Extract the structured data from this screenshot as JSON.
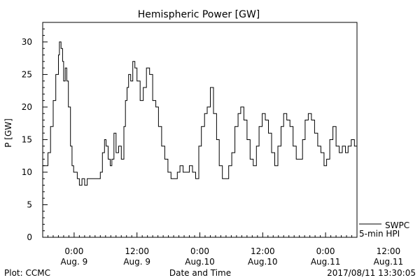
{
  "chart_data": {
    "type": "line",
    "title": "Hemispheric Power [GW]",
    "ylabel": "P [GW]",
    "xlabel": "Date and Time",
    "ylim": [
      0,
      33
    ],
    "xlim_hours": [
      0,
      60
    ],
    "y_ticks": [
      0,
      5,
      10,
      15,
      20,
      25,
      30
    ],
    "x_tick_labels": [
      {
        "time": "0:00",
        "date": "Aug. 9",
        "hour": 6
      },
      {
        "time": "12:00",
        "date": "Aug. 9",
        "hour": 18
      },
      {
        "time": "0:00",
        "date": "Aug.10",
        "hour": 30
      },
      {
        "time": "12:00",
        "date": "Aug.10",
        "hour": 42
      },
      {
        "time": "0:00",
        "date": "Aug.11",
        "hour": 54
      },
      {
        "time": "12:00",
        "date": "Aug.11",
        "hour": 66
      }
    ],
    "series": [
      {
        "name": "",
        "color": "#000000",
        "x_hours": [
          0,
          0.5,
          1,
          1.5,
          2,
          2.5,
          3,
          3.2,
          3.5,
          3.8,
          4,
          4.3,
          4.6,
          4.9,
          5.3,
          5.6,
          5.9,
          6.2,
          6.6,
          7,
          7.5,
          8,
          8.5,
          9,
          9.5,
          10,
          10.4,
          10.7,
          11,
          11.4,
          11.8,
          12.1,
          12.5,
          12.9,
          13.2,
          13.6,
          14,
          14.5,
          15,
          15.5,
          15.8,
          16.1,
          16.4,
          16.8,
          17.2,
          17.6,
          18,
          18.6,
          19.2,
          19.8,
          20.4,
          21,
          21.6,
          22.1,
          22.7,
          23.3,
          23.9,
          24.5,
          25.1,
          25.7,
          26.2,
          26.8,
          27.4,
          28,
          28.6,
          29.2,
          29.8,
          30.3,
          30.9,
          31.4,
          32,
          32.6,
          33.2,
          33.7,
          34.3,
          34.9,
          35.5,
          36.1,
          36.7,
          37.3,
          37.8,
          38.4,
          39,
          39.6,
          40.2,
          40.8,
          41.3,
          41.9,
          42.5,
          43.1,
          43.7,
          44.3,
          44.9,
          45.5,
          46,
          46.6,
          47.2,
          47.8,
          48.4,
          49,
          49.6,
          50.1,
          50.7,
          51.3,
          51.9,
          52.5,
          53.1,
          53.7,
          54.2,
          54.8,
          55.4,
          56,
          56.6,
          57.2,
          57.8,
          58.3,
          58.9,
          59.5,
          60
        ],
        "y": [
          11,
          11,
          13,
          17,
          21,
          25,
          28,
          30,
          29,
          27,
          24,
          26,
          24,
          20,
          14,
          11,
          10,
          10,
          9,
          8,
          9,
          8,
          9,
          9,
          9,
          9,
          9,
          9,
          10,
          13,
          15,
          14,
          12,
          11,
          12,
          16,
          13,
          14,
          12,
          17,
          21,
          23,
          25,
          24,
          27,
          26,
          24,
          21,
          23,
          26,
          25,
          21,
          20,
          17,
          14,
          12,
          10,
          9,
          9,
          10,
          11,
          10,
          10,
          11,
          10,
          9,
          14,
          17,
          19,
          20,
          23,
          19,
          15,
          11,
          9,
          9,
          11,
          13,
          17,
          19,
          20,
          18,
          15,
          12,
          11,
          14,
          17,
          19,
          18,
          16,
          13,
          11,
          14,
          17,
          19,
          18,
          17,
          14,
          12,
          12,
          15,
          18,
          19,
          18,
          16,
          14,
          13,
          11,
          12,
          15,
          17,
          14,
          13,
          14,
          13,
          14,
          15,
          14,
          14
        ],
        "note": ""
      }
    ],
    "legend": [
      {
        "label": "SWPC",
        "placement": "right-outside"
      },
      {
        "label": "5-min HPI",
        "placement": "right-outside"
      }
    ],
    "grid": false
  },
  "footer": {
    "left": "Plot: CCMC",
    "right": "2017/08/11 13:30:05"
  }
}
